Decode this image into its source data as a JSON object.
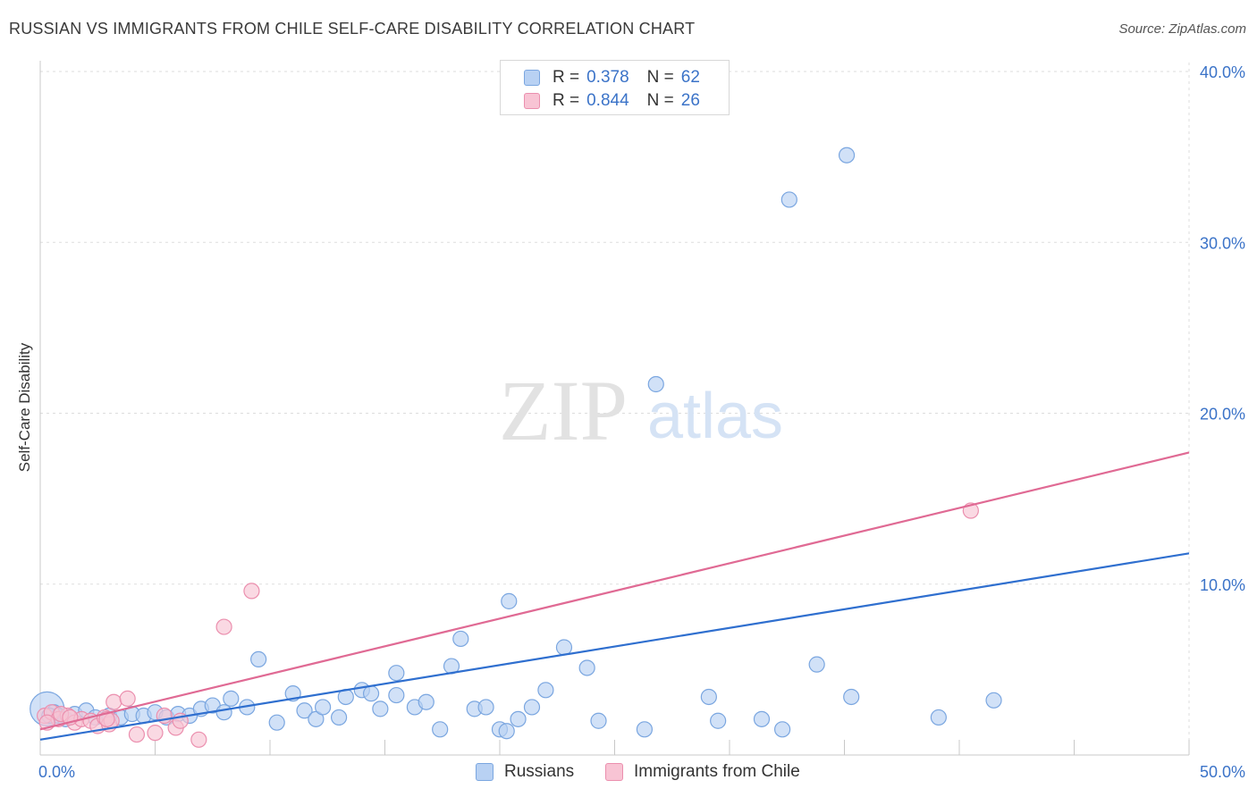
{
  "title": "RUSSIAN VS IMMIGRANTS FROM CHILE SELF-CARE DISABILITY CORRELATION CHART",
  "source": "Source: ZipAtlas.com",
  "watermark": {
    "zip": "ZIP",
    "atlas": "atlas"
  },
  "legend": {
    "russians": {
      "r_label": "R =",
      "r_value": "0.378",
      "n_label": "N =",
      "n_value": "62"
    },
    "chile": {
      "r_label": "R =",
      "r_value": "0.844",
      "n_label": "N =",
      "n_value": "26"
    }
  },
  "bottom_legend": {
    "russians": "Russians",
    "chile": "Immigrants from Chile"
  },
  "colors": {
    "russians_fill": "#b8d1f3",
    "russians_stroke": "#7aa6e0",
    "russians_line": "#2f6fcf",
    "chile_fill": "#f8c4d4",
    "chile_stroke": "#eb8fae",
    "chile_line": "#e06a94",
    "axis_text": "#3b73c8",
    "grid": "#dddddd"
  },
  "chart_data": {
    "type": "scatter",
    "title": "RUSSIAN VS IMMIGRANTS FROM CHILE SELF-CARE DISABILITY CORRELATION CHART",
    "xlabel": "",
    "ylabel": "Self-Care Disability",
    "xlim": [
      0,
      50
    ],
    "ylim": [
      0,
      40
    ],
    "x_tick_labels": [
      "0.0%",
      "50.0%"
    ],
    "y_ticks": [
      10,
      20,
      30,
      40
    ],
    "y_tick_labels": [
      "10.0%",
      "20.0%",
      "30.0%",
      "40.0%"
    ],
    "grid": true,
    "legend_position": "top-center",
    "series": [
      {
        "name": "Russians",
        "trend": {
          "x": [
            0,
            50
          ],
          "y": [
            0.9,
            11.8
          ]
        },
        "points": [
          {
            "x": 0.3,
            "y": 2.7,
            "big": true
          },
          {
            "x": 0.6,
            "y": 2.5
          },
          {
            "x": 0.8,
            "y": 2.3
          },
          {
            "x": 1.1,
            "y": 2.1
          },
          {
            "x": 1.5,
            "y": 2.4
          },
          {
            "x": 2.0,
            "y": 2.6
          },
          {
            "x": 2.4,
            "y": 2.2
          },
          {
            "x": 3.0,
            "y": 2.3
          },
          {
            "x": 3.5,
            "y": 2.2
          },
          {
            "x": 4.0,
            "y": 2.4
          },
          {
            "x": 4.5,
            "y": 2.3
          },
          {
            "x": 5.0,
            "y": 2.5
          },
          {
            "x": 5.5,
            "y": 2.2
          },
          {
            "x": 6.0,
            "y": 2.4
          },
          {
            "x": 6.5,
            "y": 2.3
          },
          {
            "x": 7.0,
            "y": 2.7
          },
          {
            "x": 7.5,
            "y": 2.9
          },
          {
            "x": 8.0,
            "y": 2.5
          },
          {
            "x": 8.3,
            "y": 3.3
          },
          {
            "x": 9.0,
            "y": 2.8
          },
          {
            "x": 9.5,
            "y": 5.6
          },
          {
            "x": 10.3,
            "y": 1.9
          },
          {
            "x": 11.0,
            "y": 3.6
          },
          {
            "x": 11.5,
            "y": 2.6
          },
          {
            "x": 12.0,
            "y": 2.1
          },
          {
            "x": 12.3,
            "y": 2.8
          },
          {
            "x": 13.0,
            "y": 2.2
          },
          {
            "x": 13.3,
            "y": 3.4
          },
          {
            "x": 14.0,
            "y": 3.8
          },
          {
            "x": 14.4,
            "y": 3.6
          },
          {
            "x": 14.8,
            "y": 2.7
          },
          {
            "x": 15.5,
            "y": 3.5
          },
          {
            "x": 15.5,
            "y": 4.8
          },
          {
            "x": 16.3,
            "y": 2.8
          },
          {
            "x": 16.8,
            "y": 3.1
          },
          {
            "x": 17.4,
            "y": 1.5
          },
          {
            "x": 17.9,
            "y": 5.2
          },
          {
            "x": 18.3,
            "y": 6.8
          },
          {
            "x": 18.9,
            "y": 2.7
          },
          {
            "x": 19.4,
            "y": 2.8
          },
          {
            "x": 20.0,
            "y": 1.5
          },
          {
            "x": 20.3,
            "y": 1.4
          },
          {
            "x": 20.4,
            "y": 9.0
          },
          {
            "x": 20.8,
            "y": 2.1
          },
          {
            "x": 21.4,
            "y": 2.8
          },
          {
            "x": 22.0,
            "y": 3.8
          },
          {
            "x": 22.8,
            "y": 6.3
          },
          {
            "x": 23.8,
            "y": 5.1
          },
          {
            "x": 24.3,
            "y": 2.0
          },
          {
            "x": 26.3,
            "y": 1.5
          },
          {
            "x": 26.8,
            "y": 21.7
          },
          {
            "x": 29.1,
            "y": 3.4
          },
          {
            "x": 29.5,
            "y": 2.0
          },
          {
            "x": 31.4,
            "y": 2.1
          },
          {
            "x": 32.3,
            "y": 1.5
          },
          {
            "x": 32.6,
            "y": 32.5
          },
          {
            "x": 33.8,
            "y": 5.3
          },
          {
            "x": 35.1,
            "y": 35.1
          },
          {
            "x": 35.3,
            "y": 3.4
          },
          {
            "x": 39.1,
            "y": 2.2
          },
          {
            "x": 41.5,
            "y": 3.2
          },
          {
            "x": 0.4,
            "y": 2.3
          }
        ]
      },
      {
        "name": "Immigrants from Chile",
        "trend": {
          "x": [
            0,
            50
          ],
          "y": [
            1.5,
            17.7
          ]
        },
        "points": [
          {
            "x": 0.2,
            "y": 2.3
          },
          {
            "x": 0.5,
            "y": 2.5
          },
          {
            "x": 0.8,
            "y": 2.1
          },
          {
            "x": 1.2,
            "y": 2.3
          },
          {
            "x": 1.5,
            "y": 1.9
          },
          {
            "x": 1.8,
            "y": 2.1
          },
          {
            "x": 2.2,
            "y": 2.0
          },
          {
            "x": 2.5,
            "y": 1.7
          },
          {
            "x": 2.8,
            "y": 2.2
          },
          {
            "x": 3.0,
            "y": 1.8
          },
          {
            "x": 3.1,
            "y": 2.0
          },
          {
            "x": 3.2,
            "y": 3.1
          },
          {
            "x": 3.8,
            "y": 3.3
          },
          {
            "x": 4.2,
            "y": 1.2
          },
          {
            "x": 5.0,
            "y": 1.3
          },
          {
            "x": 5.4,
            "y": 2.3
          },
          {
            "x": 5.9,
            "y": 1.6
          },
          {
            "x": 6.1,
            "y": 2.0
          },
          {
            "x": 6.9,
            "y": 0.9
          },
          {
            "x": 8.0,
            "y": 7.5
          },
          {
            "x": 9.2,
            "y": 9.6
          },
          {
            "x": 40.5,
            "y": 14.3
          },
          {
            "x": 0.9,
            "y": 2.4
          },
          {
            "x": 1.3,
            "y": 2.2
          },
          {
            "x": 2.9,
            "y": 2.1
          },
          {
            "x": 0.3,
            "y": 1.9
          }
        ]
      }
    ]
  }
}
